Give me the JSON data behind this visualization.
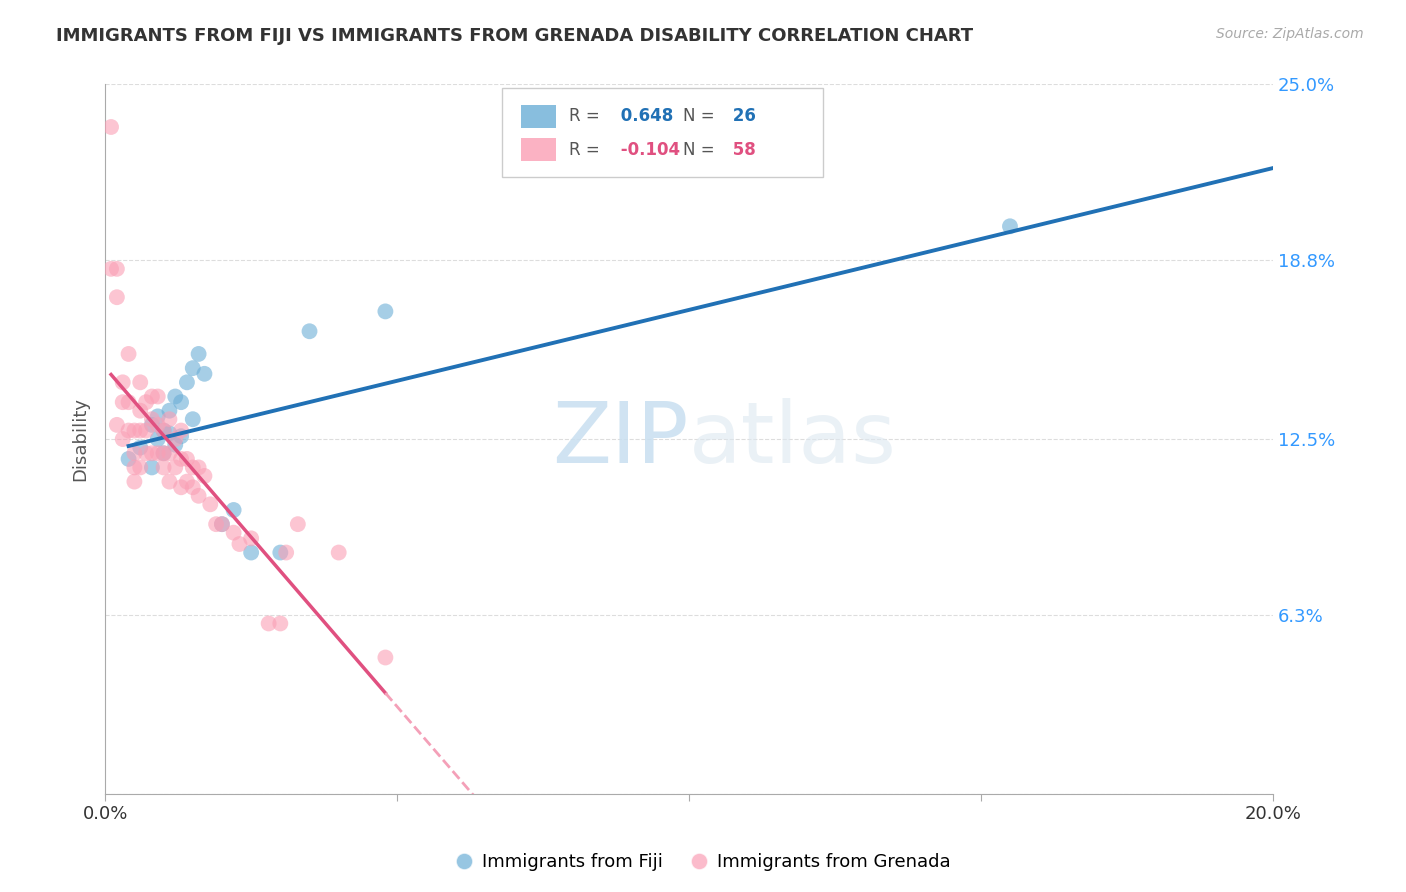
{
  "title": "IMMIGRANTS FROM FIJI VS IMMIGRANTS FROM GRENADA DISABILITY CORRELATION CHART",
  "source": "Source: ZipAtlas.com",
  "ylabel": "Disability",
  "xlim": [
    0.0,
    0.2
  ],
  "ylim": [
    0.0,
    0.25
  ],
  "fiji_R": 0.648,
  "fiji_N": 26,
  "grenada_R": -0.104,
  "grenada_N": 58,
  "fiji_color": "#6baed6",
  "grenada_color": "#fa9fb5",
  "fiji_line_color": "#2171b5",
  "grenada_line_solid_color": "#e05080",
  "grenada_line_dashed_color": "#f4a0b8",
  "watermark_zip": "ZIP",
  "watermark_atlas": "atlas",
  "ytick_positions_right": [
    0.0,
    0.063,
    0.125,
    0.188,
    0.25
  ],
  "ytick_labels_right": [
    "",
    "6.3%",
    "12.5%",
    "18.8%",
    "25.0%"
  ],
  "fiji_scatter_x": [
    0.004,
    0.006,
    0.008,
    0.008,
    0.009,
    0.009,
    0.01,
    0.01,
    0.011,
    0.011,
    0.012,
    0.012,
    0.013,
    0.013,
    0.014,
    0.015,
    0.015,
    0.016,
    0.017,
    0.02,
    0.022,
    0.025,
    0.03,
    0.035,
    0.048,
    0.155
  ],
  "fiji_scatter_y": [
    0.118,
    0.122,
    0.115,
    0.13,
    0.125,
    0.133,
    0.12,
    0.128,
    0.127,
    0.135,
    0.123,
    0.14,
    0.126,
    0.138,
    0.145,
    0.132,
    0.15,
    0.155,
    0.148,
    0.095,
    0.1,
    0.085,
    0.085,
    0.163,
    0.17,
    0.2
  ],
  "grenada_scatter_x": [
    0.001,
    0.001,
    0.002,
    0.002,
    0.002,
    0.003,
    0.003,
    0.003,
    0.004,
    0.004,
    0.004,
    0.005,
    0.005,
    0.005,
    0.005,
    0.006,
    0.006,
    0.006,
    0.006,
    0.007,
    0.007,
    0.007,
    0.008,
    0.008,
    0.008,
    0.009,
    0.009,
    0.009,
    0.01,
    0.01,
    0.01,
    0.011,
    0.011,
    0.011,
    0.012,
    0.012,
    0.013,
    0.013,
    0.013,
    0.014,
    0.014,
    0.015,
    0.015,
    0.016,
    0.016,
    0.017,
    0.018,
    0.019,
    0.02,
    0.022,
    0.023,
    0.025,
    0.028,
    0.03,
    0.031,
    0.033,
    0.04,
    0.048
  ],
  "grenada_scatter_y": [
    0.235,
    0.185,
    0.185,
    0.175,
    0.13,
    0.145,
    0.138,
    0.125,
    0.138,
    0.128,
    0.155,
    0.128,
    0.12,
    0.115,
    0.11,
    0.145,
    0.135,
    0.128,
    0.115,
    0.138,
    0.128,
    0.12,
    0.14,
    0.132,
    0.12,
    0.14,
    0.13,
    0.12,
    0.128,
    0.12,
    0.115,
    0.132,
    0.12,
    0.11,
    0.125,
    0.115,
    0.118,
    0.108,
    0.128,
    0.11,
    0.118,
    0.108,
    0.115,
    0.105,
    0.115,
    0.112,
    0.102,
    0.095,
    0.095,
    0.092,
    0.088,
    0.09,
    0.06,
    0.06,
    0.085,
    0.095,
    0.085,
    0.048
  ],
  "background_color": "#ffffff",
  "grid_color": "#dddddd"
}
